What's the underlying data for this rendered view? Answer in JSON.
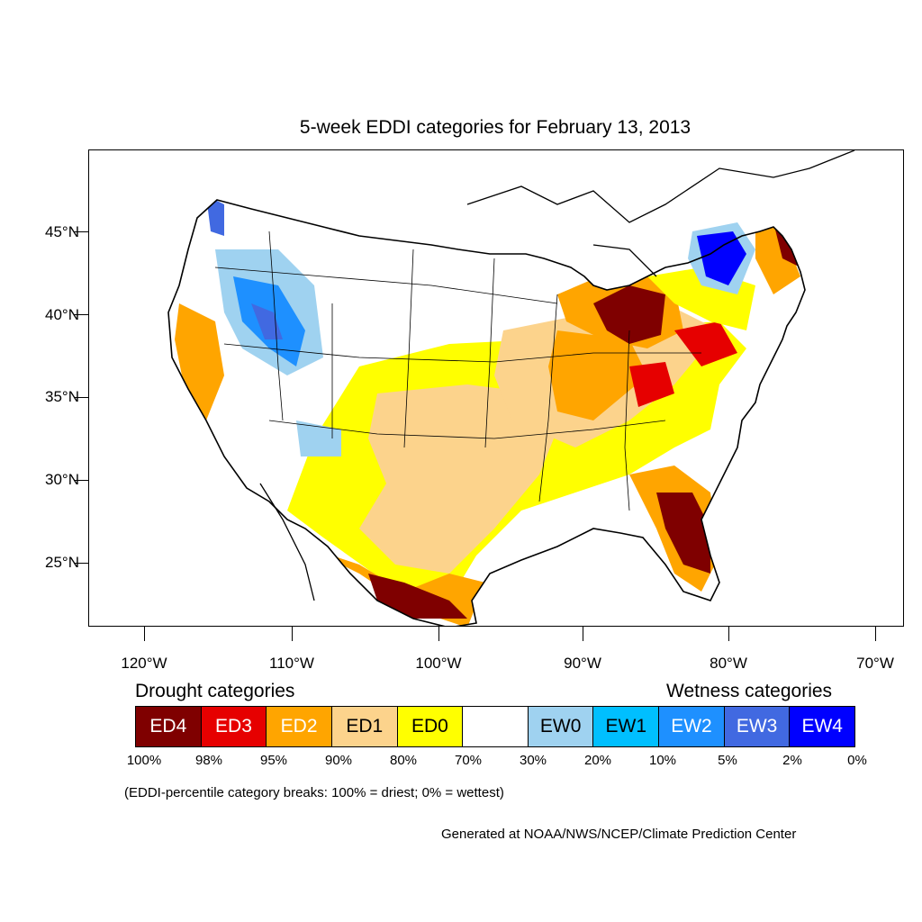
{
  "title": "5-week EDDI categories for February 13, 2013",
  "axes": {
    "lat_labels": [
      "45°N",
      "40°N",
      "35°N",
      "30°N",
      "25°N"
    ],
    "lon_labels": [
      "120°W",
      "110°W",
      "100°W",
      "90°W",
      "80°W",
      "70°W"
    ]
  },
  "legend": {
    "drought_heading": "Drought categories",
    "wetness_heading": "Wetness categories",
    "categories": [
      {
        "label": "ED4",
        "color": "#7f0000",
        "text_color": "#ffffff"
      },
      {
        "label": "ED3",
        "color": "#e60000",
        "text_color": "#ffffff"
      },
      {
        "label": "ED2",
        "color": "#ffa500",
        "text_color": "#ffffff"
      },
      {
        "label": "ED1",
        "color": "#fcd38c",
        "text_color": "#000000"
      },
      {
        "label": "ED0",
        "color": "#ffff00",
        "text_color": "#000000"
      },
      {
        "label": "",
        "color": "#ffffff",
        "text_color": "#000000"
      },
      {
        "label": "EW0",
        "color": "#9fd2f0",
        "text_color": "#000000"
      },
      {
        "label": "EW1",
        "color": "#00bfff",
        "text_color": "#000000"
      },
      {
        "label": "EW2",
        "color": "#1e90ff",
        "text_color": "#ffffff"
      },
      {
        "label": "EW3",
        "color": "#4169e1",
        "text_color": "#ffffff"
      },
      {
        "label": "EW4",
        "color": "#0000ff",
        "text_color": "#ffffff"
      }
    ],
    "breaks": [
      "100%",
      "98%",
      "95%",
      "90%",
      "80%",
      "70%",
      "30%",
      "20%",
      "10%",
      "5%",
      "2%",
      "0%"
    ]
  },
  "note": "(EDDI-percentile category breaks: 100% = driest; 0% = wettest)",
  "credit": "Generated at NOAA/NWS/NCEP/Climate Prediction Center"
}
